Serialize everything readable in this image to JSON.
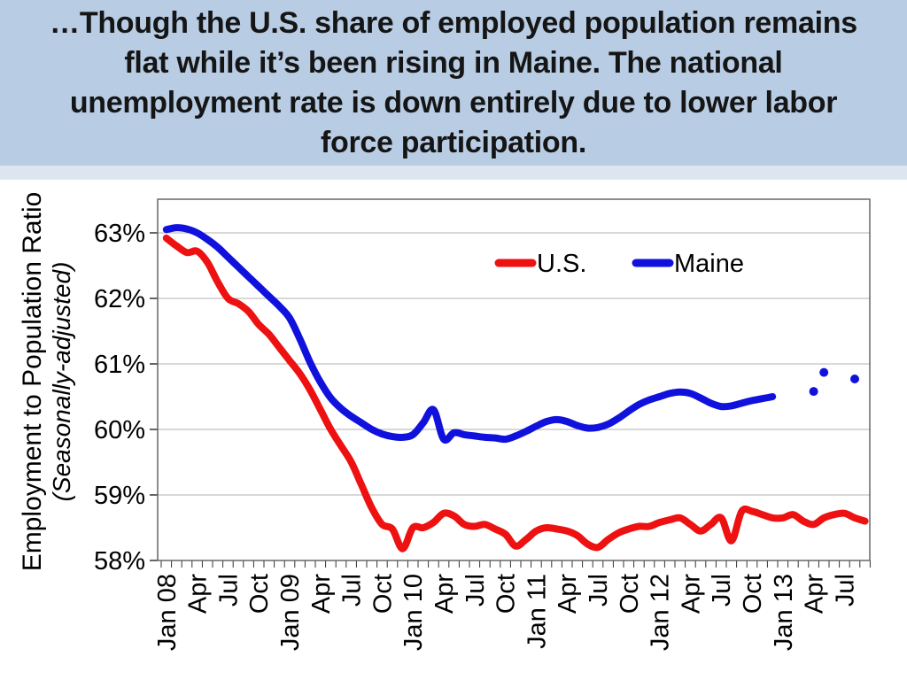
{
  "slide": {
    "title_lines": [
      "…Though the U.S. share of employed population remains",
      "flat while it’s been rising in Maine. The national",
      "unemployment rate is down entirely due to lower labor",
      "force participation."
    ],
    "band_color": "#b8cce4",
    "band_strip_color": "#dce6f1"
  },
  "chart_data": {
    "type": "line",
    "title": "",
    "ylabel": "Employment to Population Ratio",
    "ylabel_sub": "(Seasonally-adjusted)",
    "xlabel": "",
    "grid": "horizontal, 1% steps, light gray",
    "legend_position": "inside top right",
    "ylim": [
      58,
      63.5
    ],
    "y_ticks": [
      {
        "label": "58%",
        "value": 58
      },
      {
        "label": "59%",
        "value": 59
      },
      {
        "label": "60%",
        "value": 60
      },
      {
        "label": "61%",
        "value": 61
      },
      {
        "label": "62%",
        "value": 62
      },
      {
        "label": "63%",
        "value": 63
      }
    ],
    "x_frequency": "monthly",
    "x_start": "Jan 2008",
    "x_end": "Sep 2013",
    "x_tick_label_step_months": 3,
    "x_tick_labels": [
      "Jan 08",
      "Apr",
      "Jul",
      "Oct",
      "Jan 09",
      "Apr",
      "Jul",
      "Oct",
      "Jan 10",
      "Apr",
      "Jul",
      "Oct",
      "Jan 11",
      "Apr",
      "Jul",
      "Oct",
      "Jan 12",
      "Apr",
      "Jul",
      "Oct",
      "Jan 13",
      "Apr",
      "Jul"
    ],
    "axis_color": "#666666",
    "gridline_color": "#b0b0b0",
    "tick_color": "#333333",
    "series": [
      {
        "name": "U.S.",
        "color": "#ee1111",
        "style": "smooth thick line",
        "start_month": "Jan 2008",
        "values": [
          62.92,
          62.8,
          62.7,
          62.72,
          62.55,
          62.25,
          62.0,
          61.92,
          61.8,
          61.6,
          61.45,
          61.25,
          61.05,
          60.85,
          60.6,
          60.3,
          60.0,
          59.75,
          59.5,
          59.15,
          58.8,
          58.55,
          58.48,
          58.18,
          58.5,
          58.5,
          58.58,
          58.72,
          58.68,
          58.55,
          58.52,
          58.55,
          58.48,
          58.4,
          58.22,
          58.32,
          58.45,
          58.5,
          58.48,
          58.45,
          58.38,
          58.25,
          58.2,
          58.32,
          58.42,
          58.48,
          58.52,
          58.52,
          58.58,
          58.62,
          58.65,
          58.55,
          58.45,
          58.55,
          58.65,
          58.3,
          58.75,
          58.75,
          58.7,
          58.65,
          58.65,
          58.7,
          58.6,
          58.55,
          58.65,
          58.7,
          58.72,
          58.65,
          58.6
        ]
      },
      {
        "name": "Maine",
        "color": "#1111dd",
        "style": "smooth thick line, last months shown as isolated dots",
        "start_month": "Jan 2008",
        "values": [
          63.05,
          63.08,
          63.06,
          63.0,
          62.9,
          62.78,
          62.63,
          62.48,
          62.33,
          62.18,
          62.03,
          61.88,
          61.7,
          61.38,
          61.02,
          60.72,
          60.48,
          60.32,
          60.2,
          60.1,
          60.0,
          59.93,
          59.89,
          59.88,
          59.92,
          60.1,
          60.3,
          59.85,
          59.95,
          59.92,
          59.9,
          59.88,
          59.87,
          59.85,
          59.9,
          59.97,
          60.05,
          60.12,
          60.15,
          60.12,
          60.06,
          60.02,
          60.03,
          60.08,
          60.17,
          60.28,
          60.38,
          60.45,
          60.5,
          60.55,
          60.57,
          60.55,
          60.48,
          60.4,
          60.35,
          60.36,
          60.4,
          60.44,
          60.47,
          60.5
        ],
        "extra_dot_points": [
          {
            "x_label": "Apr 13",
            "month_index": 63,
            "value": 60.58
          },
          {
            "x_label": "May 13",
            "month_index": 64,
            "value": 60.87
          },
          {
            "x_label": "Aug 13",
            "month_index": 67,
            "value": 60.77
          }
        ]
      }
    ]
  }
}
